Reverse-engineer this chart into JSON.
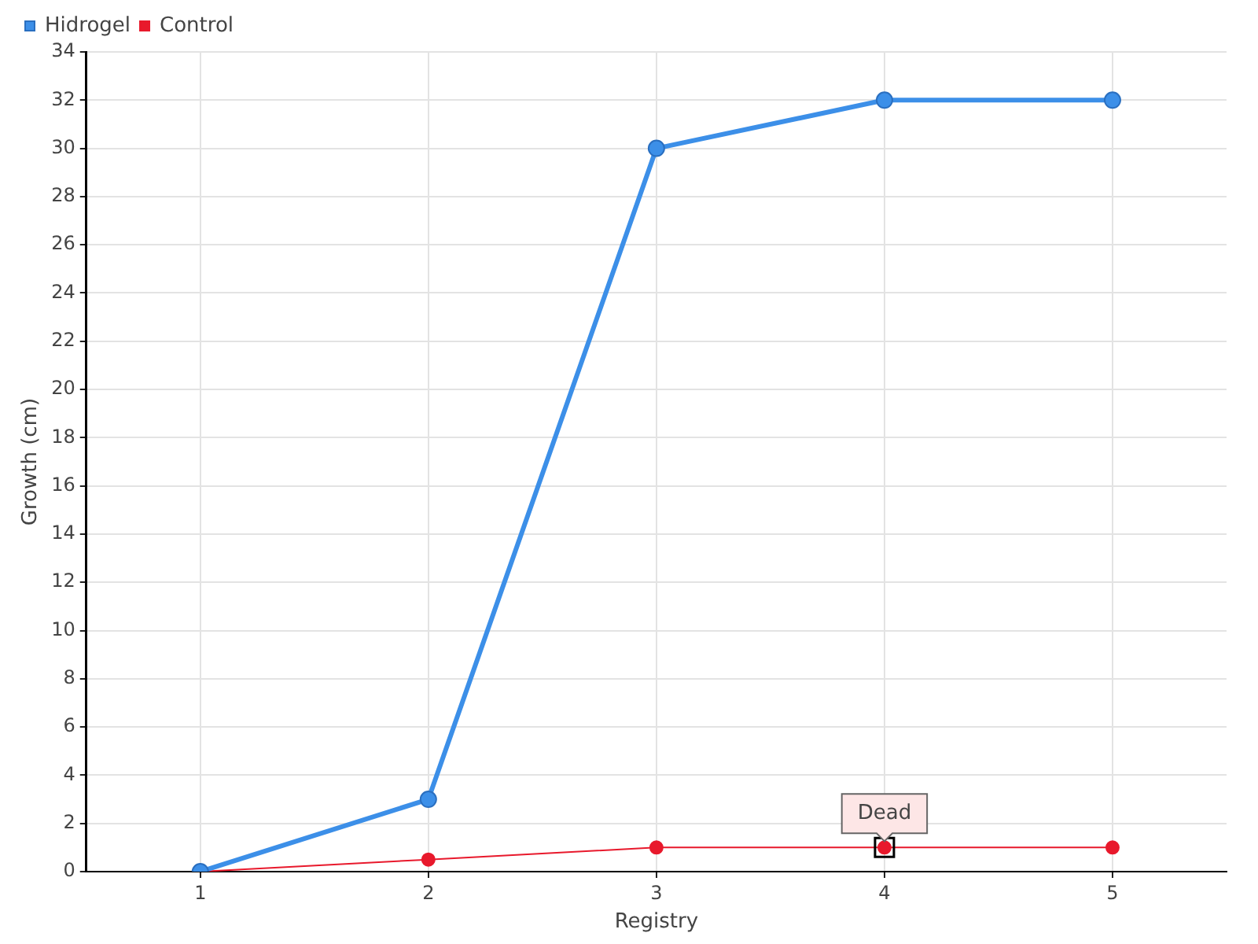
{
  "chart_data": {
    "type": "line",
    "xlabel": "Registry",
    "ylabel": "Growth (cm)",
    "x": [
      1,
      2,
      3,
      4,
      5
    ],
    "series": [
      {
        "name": "Hidrogel",
        "color": "#3c8fe8",
        "values": [
          0,
          3,
          30,
          32,
          32
        ]
      },
      {
        "name": "Control",
        "color": "#e8192c",
        "values": [
          0,
          0.5,
          1,
          1,
          1
        ]
      }
    ],
    "xlim": [
      0.5,
      5.5
    ],
    "xticks": [
      1,
      2,
      3,
      4,
      5
    ],
    "ylim": [
      0,
      34
    ],
    "yticks": [
      0,
      2,
      4,
      6,
      8,
      10,
      12,
      14,
      16,
      18,
      20,
      22,
      24,
      26,
      28,
      30,
      32,
      34
    ],
    "annotations": [
      {
        "text": "Dead",
        "x": 4,
        "y": 1
      }
    ],
    "grid": true,
    "legend": "top left",
    "marker": "circle",
    "line_style": "solid"
  }
}
